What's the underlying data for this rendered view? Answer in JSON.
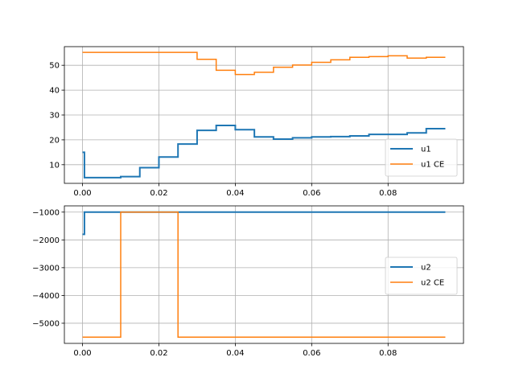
{
  "chart_data": [
    {
      "type": "line",
      "step": "post",
      "xlim": [
        -0.00475,
        0.09975
      ],
      "ylim": [
        2.5,
        57.5
      ],
      "x_ticks": [
        0.0,
        0.02,
        0.04,
        0.06,
        0.08
      ],
      "x_tick_labels": [
        "0.00",
        "0.02",
        "0.04",
        "0.06",
        "0.08"
      ],
      "y_ticks": [
        10,
        20,
        30,
        40,
        50
      ],
      "y_tick_labels": [
        "10",
        "20",
        "30",
        "40",
        "50"
      ],
      "grid": true,
      "legend_position": "lower-right",
      "series": [
        {
          "name": "u1",
          "color": "#1f77b4",
          "width": 2,
          "x": [
            0.0,
            0.0005,
            0.01,
            0.015,
            0.02,
            0.025,
            0.03,
            0.035,
            0.04,
            0.045,
            0.05,
            0.055,
            0.06,
            0.065,
            0.07,
            0.075,
            0.08,
            0.085,
            0.09,
            0.095
          ],
          "y": [
            15.0,
            4.8,
            5.2,
            8.8,
            13.1,
            18.3,
            23.8,
            25.8,
            24.1,
            21.2,
            20.3,
            20.8,
            21.2,
            21.3,
            21.6,
            22.2,
            22.2,
            22.8,
            24.5,
            24.5
          ]
        },
        {
          "name": "u1 CE",
          "color": "#ff7f0e",
          "width": 1.5,
          "x": [
            0.0,
            0.03,
            0.035,
            0.04,
            0.045,
            0.05,
            0.055,
            0.06,
            0.065,
            0.07,
            0.075,
            0.08,
            0.085,
            0.09,
            0.095
          ],
          "y": [
            55.2,
            52.4,
            48.0,
            46.3,
            47.2,
            49.2,
            50.1,
            51.2,
            52.2,
            53.2,
            53.5,
            53.8,
            52.9,
            53.2,
            53.2
          ]
        }
      ]
    },
    {
      "type": "line",
      "step": "post",
      "xlim": [
        -0.00475,
        0.09975
      ],
      "ylim": [
        -5725,
        -775
      ],
      "x_ticks": [
        0.0,
        0.02,
        0.04,
        0.06,
        0.08
      ],
      "x_tick_labels": [
        "0.00",
        "0.02",
        "0.04",
        "0.06",
        "0.08"
      ],
      "y_ticks": [
        -5000,
        -4000,
        -3000,
        -2000,
        -1000
      ],
      "y_tick_labels": [
        "−5000",
        "−4000",
        "−3000",
        "−2000",
        "−1000"
      ],
      "grid": true,
      "legend_position": "center-right",
      "series": [
        {
          "name": "u2",
          "color": "#1f77b4",
          "width": 2,
          "x": [
            0.0,
            0.0005,
            0.095
          ],
          "y": [
            -1800,
            -1000,
            -1000
          ]
        },
        {
          "name": "u2 CE",
          "color": "#ff7f0e",
          "width": 1.5,
          "x": [
            0.0,
            0.01,
            0.025,
            0.095
          ],
          "y": [
            -5500,
            -1000,
            -5500,
            -5500
          ]
        }
      ]
    }
  ]
}
